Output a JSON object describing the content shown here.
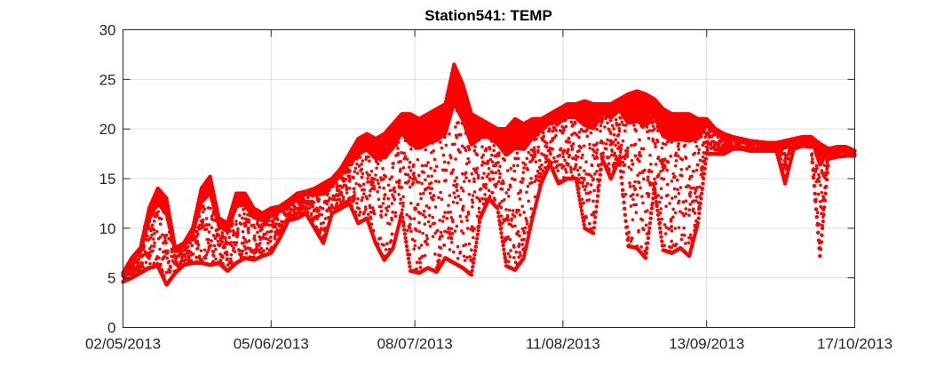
{
  "chart_data": {
    "type": "scatter",
    "title": "Station541: TEMP",
    "xlabel": "",
    "ylabel": "",
    "ylim": [
      0,
      30
    ],
    "xlim": [
      "2013-05-02",
      "2013-10-17"
    ],
    "yticks": [
      0,
      5,
      10,
      15,
      20,
      25,
      30
    ],
    "xticks": [
      {
        "date": "2013-05-02",
        "label": "02/05/2013"
      },
      {
        "date": "2013-06-05",
        "label": "05/06/2013"
      },
      {
        "date": "2013-07-08",
        "label": "08/07/2013"
      },
      {
        "date": "2013-08-11",
        "label": "11/08/2013"
      },
      {
        "date": "2013-09-13",
        "label": "13/09/2013"
      },
      {
        "date": "2013-10-17",
        "label": "17/10/2013"
      }
    ],
    "grid": true,
    "marker_color": "#ff0000",
    "series": [
      {
        "x": [
          "2013-05-02",
          "2013-05-04",
          "2013-05-06",
          "2013-05-08",
          "2013-05-10",
          "2013-05-12",
          "2013-05-14",
          "2013-05-16",
          "2013-05-18",
          "2013-05-20",
          "2013-05-22",
          "2013-05-24",
          "2013-05-26",
          "2013-05-28",
          "2013-05-30",
          "2013-06-01",
          "2013-06-03",
          "2013-06-05",
          "2013-06-07",
          "2013-06-09",
          "2013-06-11",
          "2013-06-13",
          "2013-06-15",
          "2013-06-17",
          "2013-06-19",
          "2013-06-21",
          "2013-06-23",
          "2013-06-25",
          "2013-06-27",
          "2013-06-29",
          "2013-07-01",
          "2013-07-03",
          "2013-07-05",
          "2013-07-07",
          "2013-07-09",
          "2013-07-11",
          "2013-07-13",
          "2013-07-15",
          "2013-07-17",
          "2013-07-19",
          "2013-07-21",
          "2013-07-23",
          "2013-07-25",
          "2013-07-27",
          "2013-07-29",
          "2013-07-31",
          "2013-08-02",
          "2013-08-04",
          "2013-08-06",
          "2013-08-08",
          "2013-08-10",
          "2013-08-12",
          "2013-08-14",
          "2013-08-16",
          "2013-08-18",
          "2013-08-20",
          "2013-08-22",
          "2013-08-24",
          "2013-08-26",
          "2013-08-28",
          "2013-08-30",
          "2013-09-01",
          "2013-09-03",
          "2013-09-05",
          "2013-09-07",
          "2013-09-09",
          "2013-09-11",
          "2013-09-13",
          "2013-09-15",
          "2013-09-17",
          "2013-09-19",
          "2013-09-21",
          "2013-09-23",
          "2013-09-25",
          "2013-09-27",
          "2013-09-29",
          "2013-10-01",
          "2013-10-03",
          "2013-10-05",
          "2013-10-07",
          "2013-10-09",
          "2013-10-11",
          "2013-10-13",
          "2013-10-15",
          "2013-10-17"
        ],
        "min": [
          4.6,
          5.0,
          5.5,
          6.0,
          6.2,
          4.3,
          5.5,
          6.3,
          6.5,
          6.5,
          6.3,
          6.5,
          5.7,
          6.5,
          7.0,
          6.8,
          7.2,
          7.5,
          9.0,
          10.8,
          11.0,
          11.5,
          10.0,
          8.5,
          11.5,
          12.0,
          12.5,
          10.5,
          11.0,
          8.5,
          6.8,
          8.0,
          11.5,
          5.7,
          5.5,
          6.0,
          5.6,
          7.0,
          6.5,
          6.0,
          5.3,
          11.0,
          13.0,
          12.0,
          6.2,
          5.8,
          7.0,
          11.0,
          14.5,
          16.5,
          14.5,
          15.0,
          15.0,
          10.0,
          9.5,
          17.0,
          15.0,
          17.0,
          8.2,
          8.0,
          7.0,
          14.0,
          7.8,
          7.5,
          8.0,
          7.2,
          10.5,
          17.5,
          17.5,
          17.5,
          18.0,
          18.0,
          17.8,
          17.8,
          17.8,
          17.8,
          14.5,
          18.0,
          18.3,
          18.2,
          7.2,
          17.0,
          17.2,
          17.3,
          17.3
        ],
        "max": [
          5.5,
          7.0,
          8.0,
          12.0,
          14.0,
          13.0,
          8.0,
          8.5,
          10.0,
          14.0,
          15.2,
          11.0,
          10.5,
          13.5,
          13.5,
          12.0,
          11.5,
          12.0,
          12.2,
          12.8,
          13.5,
          13.7,
          14.0,
          14.5,
          15.0,
          16.0,
          17.5,
          19.0,
          19.5,
          19.0,
          19.5,
          20.5,
          21.5,
          21.5,
          21.0,
          21.5,
          22.0,
          22.5,
          26.5,
          24.5,
          21.5,
          21.0,
          20.5,
          20.0,
          20.0,
          21.0,
          20.5,
          21.0,
          21.0,
          21.5,
          22.0,
          22.5,
          22.5,
          22.8,
          22.5,
          22.5,
          22.5,
          23.0,
          23.5,
          23.8,
          23.5,
          23.0,
          22.0,
          21.5,
          21.5,
          21.5,
          21.0,
          21.0,
          20.0,
          19.5,
          19.2,
          19.0,
          18.8,
          18.7,
          18.6,
          18.6,
          18.8,
          19.0,
          19.2,
          19.2,
          18.5,
          18.0,
          18.2,
          18.2,
          17.8
        ]
      }
    ]
  }
}
